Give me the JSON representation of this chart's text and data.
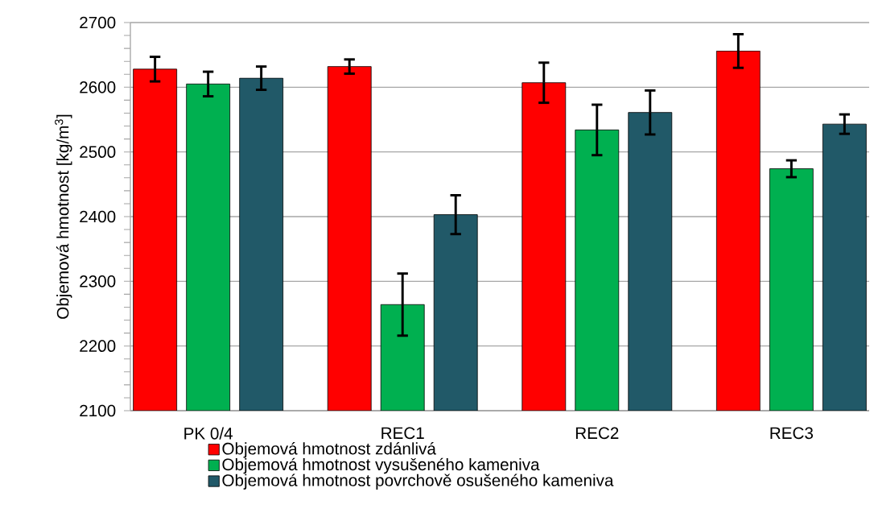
{
  "chart_data": {
    "type": "bar",
    "ylabel": "Objemová hmotnost [kg/m$^{3}$]",
    "categories": [
      "PK 0/4",
      "REC1",
      "REC2",
      "REC3"
    ],
    "series": [
      {
        "name": "Objemová hmotnost zdánlivá",
        "color": "#ff0000",
        "values": [
          2628,
          2632,
          2607,
          2656
        ],
        "errors": [
          19,
          11,
          31,
          26
        ]
      },
      {
        "name": "Objemová hmotnost vysušeného kameniva",
        "color": "#00b050",
        "values": [
          2605,
          2264,
          2534,
          2474
        ],
        "errors": [
          19,
          48,
          39,
          13
        ]
      },
      {
        "name": "Objemová hmotnost povrchově osušeného kameniva",
        "color": "#215968",
        "values": [
          2614,
          2403,
          2561,
          2543
        ],
        "errors": [
          18,
          30,
          34,
          15
        ]
      }
    ],
    "ylim": [
      2100,
      2700
    ],
    "yticks": [
      2100,
      2200,
      2300,
      2400,
      2500,
      2600,
      2700
    ],
    "grid": "y",
    "legend": "bottom"
  }
}
